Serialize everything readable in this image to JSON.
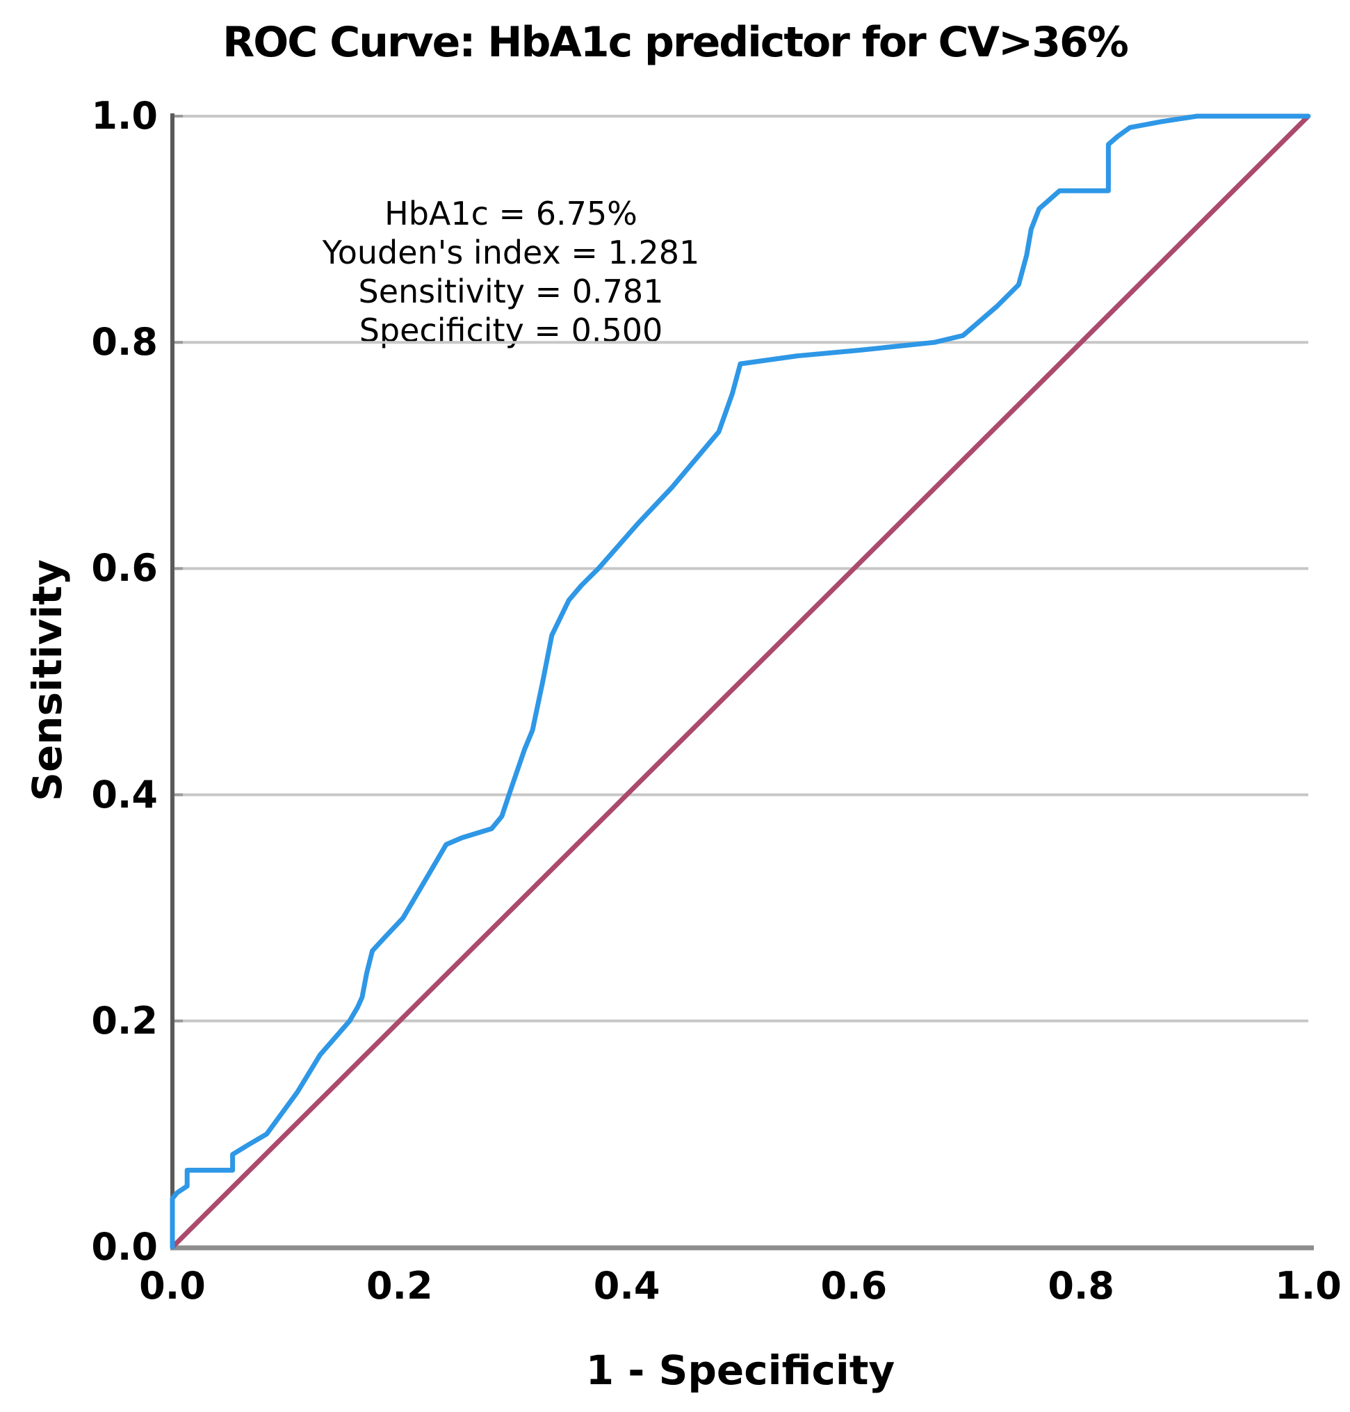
{
  "title": "ROC Curve: HbA1c predictor for CV>36%",
  "annotation": {
    "lines": [
      "HbA1c = 6.75%",
      "Youden's index = 1.281",
      "Sensitivity = 0.781",
      "Specificity = 0.500"
    ]
  },
  "axes": {
    "x_label": "1 - Specificity",
    "y_label": "Sensitivity",
    "x_ticks": [
      "0.0",
      "0.2",
      "0.4",
      "0.6",
      "0.8",
      "1.0"
    ],
    "y_ticks": [
      "0.0",
      "0.2",
      "0.4",
      "0.6",
      "0.8",
      "1.0"
    ]
  },
  "colors": {
    "roc_curve": "#2e97e6",
    "reference_line": "#ab4a6d",
    "gridline": "#c7c7c7",
    "tick_stub": "#9a9a9a",
    "y_axis": "#5a5a5a",
    "x_axis": "#8d8d8d",
    "background": "#ffffff",
    "text": "#000000"
  },
  "chart_data": {
    "type": "line",
    "title": "ROC Curve: HbA1c predictor for CV>36%",
    "xlabel": "1 - Specificity",
    "ylabel": "Sensitivity",
    "xlim": [
      0,
      1
    ],
    "ylim": [
      0,
      1
    ],
    "grid": "horizontal-only",
    "legend": "none",
    "annotation_point": {
      "hba1c": "6.75%",
      "youden_index": 1.281,
      "sensitivity": 0.781,
      "specificity": 0.5
    },
    "series": [
      {
        "name": "ROC curve",
        "color_key": "roc_curve",
        "points": [
          [
            0.0,
            0.0
          ],
          [
            0.0,
            0.043
          ],
          [
            0.004,
            0.048
          ],
          [
            0.013,
            0.054
          ],
          [
            0.013,
            0.068
          ],
          [
            0.053,
            0.068
          ],
          [
            0.053,
            0.082
          ],
          [
            0.066,
            0.09
          ],
          [
            0.083,
            0.1
          ],
          [
            0.11,
            0.137
          ],
          [
            0.13,
            0.17
          ],
          [
            0.156,
            0.2
          ],
          [
            0.163,
            0.212
          ],
          [
            0.167,
            0.221
          ],
          [
            0.171,
            0.242
          ],
          [
            0.176,
            0.262
          ],
          [
            0.187,
            0.274
          ],
          [
            0.203,
            0.291
          ],
          [
            0.22,
            0.32
          ],
          [
            0.234,
            0.344
          ],
          [
            0.241,
            0.356
          ],
          [
            0.255,
            0.362
          ],
          [
            0.281,
            0.37
          ],
          [
            0.29,
            0.381
          ],
          [
            0.297,
            0.402
          ],
          [
            0.31,
            0.44
          ],
          [
            0.317,
            0.457
          ],
          [
            0.326,
            0.5
          ],
          [
            0.334,
            0.541
          ],
          [
            0.349,
            0.572
          ],
          [
            0.36,
            0.585
          ],
          [
            0.375,
            0.6
          ],
          [
            0.41,
            0.64
          ],
          [
            0.44,
            0.672
          ],
          [
            0.481,
            0.721
          ],
          [
            0.493,
            0.755
          ],
          [
            0.5,
            0.781
          ],
          [
            0.55,
            0.788
          ],
          [
            0.604,
            0.793
          ],
          [
            0.671,
            0.8
          ],
          [
            0.696,
            0.806
          ],
          [
            0.726,
            0.832
          ],
          [
            0.745,
            0.851
          ],
          [
            0.752,
            0.877
          ],
          [
            0.756,
            0.9
          ],
          [
            0.763,
            0.918
          ],
          [
            0.781,
            0.934
          ],
          [
            0.824,
            0.934
          ],
          [
            0.824,
            0.975
          ],
          [
            0.832,
            0.982
          ],
          [
            0.843,
            0.99
          ],
          [
            0.87,
            0.995
          ],
          [
            0.902,
            1.0
          ],
          [
            1.0,
            1.0
          ]
        ]
      },
      {
        "name": "Reference diagonal",
        "color_key": "reference_line",
        "points": [
          [
            0,
            0
          ],
          [
            1,
            1
          ]
        ]
      }
    ]
  }
}
